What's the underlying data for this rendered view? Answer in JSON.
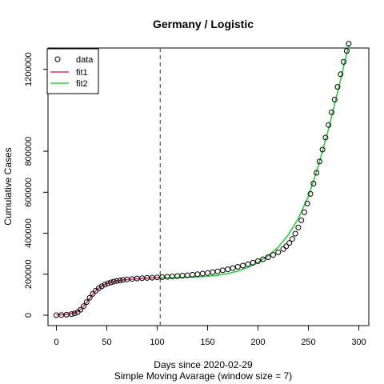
{
  "chart_data": {
    "type": "scatter",
    "title": "Germany / Logistic",
    "xlabel": "Days since 2020-02-29",
    "xlabel2": "Simple Moving Avarage (window size = 7)",
    "ylabel": "Cumulative Cases",
    "xlim": [
      0,
      300
    ],
    "ylim": [
      0,
      1300000
    ],
    "x_ticks": [
      0,
      50,
      100,
      150,
      200,
      250,
      300
    ],
    "y_ticks": [
      0,
      200000,
      400000,
      600000,
      800000,
      1200000
    ],
    "vline_x": 103,
    "grid": false,
    "legend_position": "top-left",
    "legend": [
      {
        "label": "data",
        "symbol": "circle",
        "color": "#000000"
      },
      {
        "label": "fit1",
        "symbol": "line",
        "color": "#e0325f"
      },
      {
        "label": "fit2",
        "symbol": "line",
        "color": "#2ecc40"
      }
    ],
    "series": [
      {
        "name": "data",
        "kind": "points",
        "color": "#000000",
        "x": [
          0,
          5,
          10,
          15,
          18,
          21,
          24,
          27,
          30,
          33,
          36,
          39,
          42,
          45,
          48,
          51,
          54,
          57,
          60,
          63,
          66,
          70,
          75,
          80,
          85,
          90,
          95,
          100,
          105,
          110,
          115,
          120,
          125,
          130,
          135,
          140,
          145,
          150,
          155,
          160,
          165,
          170,
          175,
          180,
          185,
          190,
          195,
          200,
          205,
          210,
          215,
          220,
          225,
          228,
          231,
          234,
          237,
          240,
          243,
          246,
          249,
          252,
          255,
          258,
          261,
          264,
          267,
          270,
          273,
          276,
          279,
          282,
          285,
          288,
          290
        ],
        "y": [
          0,
          800,
          2500,
          5500,
          9000,
          15000,
          27000,
          44000,
          64000,
          85000,
          104000,
          119000,
          131000,
          141000,
          149000,
          155000,
          160000,
          164000,
          167000,
          170000,
          172000,
          174500,
          177000,
          179000,
          180500,
          182000,
          183000,
          184500,
          186000,
          187500,
          189000,
          191000,
          193000,
          195000,
          197500,
          200000,
          203000,
          206000,
          210000,
          214000,
          219000,
          224000,
          230000,
          236000,
          242000,
          249000,
          256000,
          264000,
          273000,
          283000,
          294000,
          307000,
          323000,
          336000,
          352000,
          372000,
          398000,
          428000,
          463000,
          502000,
          545000,
          592000,
          642000,
          695000,
          750000,
          808000,
          867000,
          928000,
          990000,
          1052000,
          1114000,
          1176000,
          1236000,
          1290000,
          1325000
        ]
      },
      {
        "name": "fit1",
        "kind": "line",
        "color": "#e0325f",
        "x": [
          0,
          5,
          10,
          15,
          20,
          25,
          30,
          35,
          40,
          45,
          50,
          55,
          60,
          65,
          70,
          75,
          80,
          85,
          90,
          95,
          100,
          103
        ],
        "y": [
          1000,
          2000,
          4000,
          8000,
          15000,
          32000,
          62000,
          96000,
          124000,
          143000,
          155000,
          163000,
          168000,
          171000,
          173500,
          175500,
          177500,
          179000,
          181000,
          182500,
          184000,
          185000
        ]
      },
      {
        "name": "fit2",
        "kind": "line",
        "color": "#2ecc40",
        "x": [
          103,
          110,
          120,
          130,
          140,
          150,
          160,
          170,
          180,
          190,
          200,
          210,
          220,
          230,
          240,
          250,
          260,
          270,
          280,
          290
        ],
        "y": [
          183000,
          183500,
          184000,
          185000,
          187000,
          190000,
          195000,
          203000,
          215000,
          233000,
          258000,
          290000,
          332000,
          392000,
          472000,
          580000,
          730000,
          910000,
          1110000,
          1320000
        ]
      }
    ]
  }
}
